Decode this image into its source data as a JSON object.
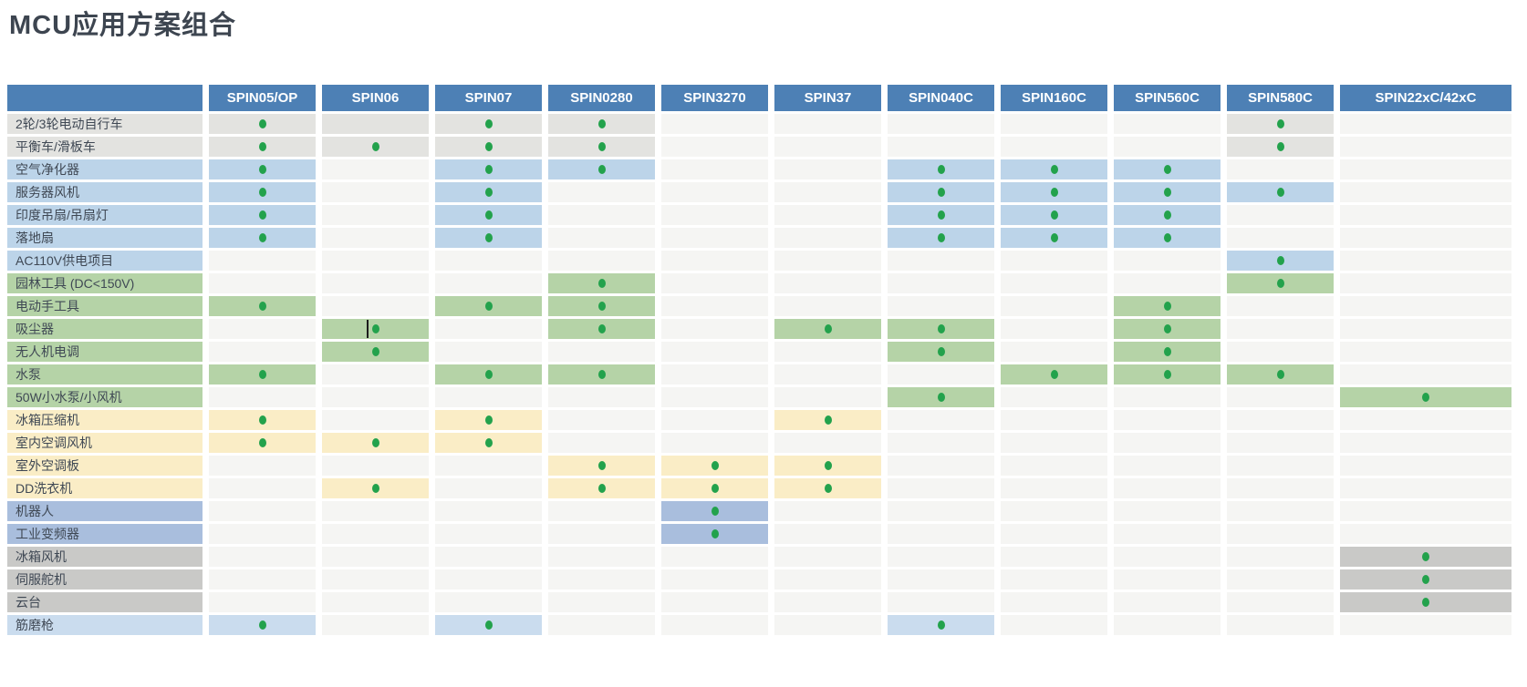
{
  "page_title": "MCU应用方案组合",
  "chart_data": {
    "type": "table",
    "title": "MCU应用方案组合",
    "description_of_encoding": "Application-vs-MCU compatibility matrix; cell code 0 = empty, 1 = category-colored cell without marker, 2 = category-colored cell with green dot marker",
    "columns": [
      "SPIN05/OP",
      "SPIN06",
      "SPIN07",
      "SPIN0280",
      "SPIN3270",
      "SPIN37",
      "SPIN040C",
      "SPIN160C",
      "SPIN560C",
      "SPIN580C",
      "SPIN22xC/42xC"
    ],
    "rows": [
      {
        "label": "2轮/3轮电动自行车",
        "category": "gray",
        "cells": [
          2,
          1,
          2,
          2,
          0,
          0,
          0,
          0,
          0,
          2,
          0
        ]
      },
      {
        "label": "平衡车/滑板车",
        "category": "gray",
        "cells": [
          2,
          2,
          2,
          2,
          0,
          0,
          0,
          0,
          0,
          2,
          0
        ]
      },
      {
        "label": "空气净化器",
        "category": "blue",
        "cells": [
          2,
          0,
          2,
          2,
          0,
          0,
          2,
          2,
          2,
          0,
          0
        ]
      },
      {
        "label": "服务器风机",
        "category": "blue",
        "cells": [
          2,
          0,
          2,
          0,
          0,
          0,
          2,
          2,
          2,
          2,
          0
        ]
      },
      {
        "label": "印度吊扇/吊扇灯",
        "category": "blue",
        "cells": [
          2,
          0,
          2,
          0,
          0,
          0,
          2,
          2,
          2,
          0,
          0
        ]
      },
      {
        "label": "落地扇",
        "category": "blue",
        "cells": [
          2,
          0,
          2,
          0,
          0,
          0,
          2,
          2,
          2,
          0,
          0
        ]
      },
      {
        "label": "AC110V供电项目",
        "category": "blue",
        "cells": [
          0,
          0,
          0,
          0,
          0,
          0,
          0,
          0,
          0,
          2,
          0
        ]
      },
      {
        "label": "园林工具 (DC<150V)",
        "category": "green",
        "cells": [
          0,
          0,
          0,
          2,
          0,
          0,
          0,
          0,
          0,
          2,
          0
        ]
      },
      {
        "label": "电动手工具",
        "category": "green",
        "cells": [
          2,
          0,
          2,
          2,
          0,
          0,
          0,
          0,
          2,
          0,
          0
        ]
      },
      {
        "label": "吸尘器",
        "category": "green",
        "cells": [
          0,
          2,
          0,
          2,
          0,
          2,
          2,
          0,
          2,
          0,
          0
        ],
        "cursor_artifact_col": 1
      },
      {
        "label": "无人机电调",
        "category": "green",
        "cells": [
          0,
          2,
          0,
          0,
          0,
          0,
          2,
          0,
          2,
          0,
          0
        ]
      },
      {
        "label": "水泵",
        "category": "green",
        "cells": [
          2,
          0,
          2,
          2,
          0,
          0,
          0,
          2,
          2,
          2,
          0
        ]
      },
      {
        "label": "50W小水泵/小风机",
        "category": "green",
        "cells": [
          0,
          0,
          0,
          0,
          0,
          0,
          2,
          0,
          0,
          0,
          2
        ]
      },
      {
        "label": "冰箱压缩机",
        "category": "yellow",
        "cells": [
          2,
          0,
          2,
          0,
          0,
          2,
          0,
          0,
          0,
          0,
          0
        ]
      },
      {
        "label": "室内空调风机",
        "category": "yellow",
        "cells": [
          2,
          2,
          2,
          0,
          0,
          0,
          0,
          0,
          0,
          0,
          0
        ]
      },
      {
        "label": "室外空调板",
        "category": "yellow",
        "cells": [
          0,
          0,
          0,
          2,
          2,
          2,
          0,
          0,
          0,
          0,
          0
        ]
      },
      {
        "label": "DD洗衣机",
        "category": "yellow",
        "cells": [
          0,
          2,
          0,
          2,
          2,
          2,
          0,
          0,
          0,
          0,
          0
        ]
      },
      {
        "label": "机器人",
        "category": "periwinkle",
        "cells": [
          0,
          0,
          0,
          0,
          2,
          0,
          0,
          0,
          0,
          0,
          0
        ]
      },
      {
        "label": "工业变频器",
        "category": "periwinkle",
        "cells": [
          0,
          0,
          0,
          0,
          2,
          0,
          0,
          0,
          0,
          0,
          0
        ]
      },
      {
        "label": "冰箱风机",
        "category": "darkgray",
        "cells": [
          0,
          0,
          0,
          0,
          0,
          0,
          0,
          0,
          0,
          0,
          2
        ]
      },
      {
        "label": "伺服舵机",
        "category": "darkgray",
        "cells": [
          0,
          0,
          0,
          0,
          0,
          0,
          0,
          0,
          0,
          0,
          2
        ]
      },
      {
        "label": "云台",
        "category": "darkgray",
        "cells": [
          0,
          0,
          0,
          0,
          0,
          0,
          0,
          0,
          0,
          0,
          2
        ]
      },
      {
        "label": "筋磨枪",
        "category": "lightblue",
        "cells": [
          2,
          0,
          2,
          0,
          0,
          0,
          2,
          0,
          0,
          0,
          0
        ]
      }
    ],
    "text_cursor_artifact": {
      "row": "吸尘器",
      "column": "SPIN06"
    }
  },
  "colors": {
    "header_bg": "#4d80b5",
    "header_text": "#ffffff",
    "title_text": "#3d4550",
    "label_text": "#3f4854",
    "empty_cell": "#f5f5f3",
    "dot": "#23a24c",
    "category_colors": {
      "gray": "#e3e3e0",
      "blue": "#bcd4e9",
      "green": "#b5d3a7",
      "yellow": "#faedc6",
      "periwinkle": "#a9bedd",
      "darkgray": "#c9c9c7",
      "lightblue": "#cadcee"
    }
  }
}
